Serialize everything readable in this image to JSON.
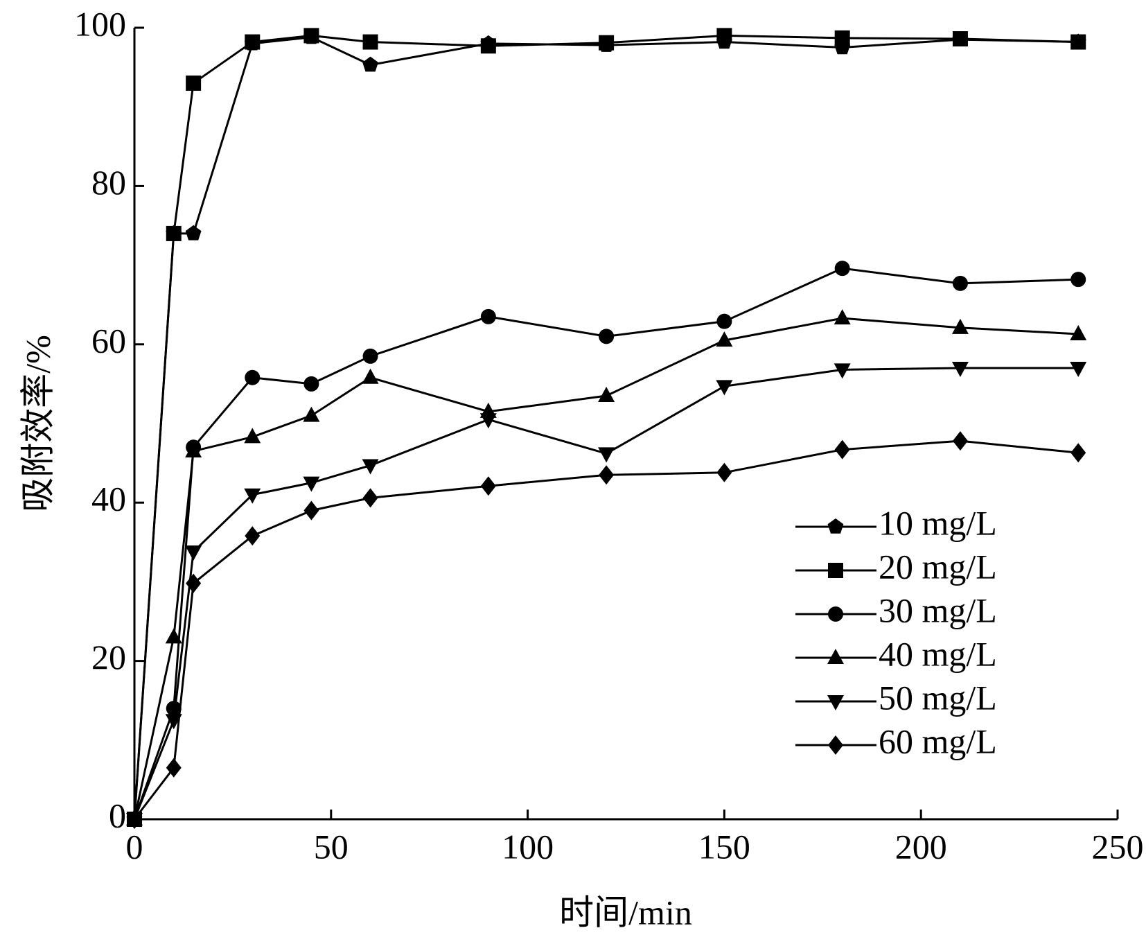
{
  "chart_data": {
    "type": "line",
    "x_label": "时间/min",
    "y_label": "吸附效率/%",
    "x": [
      0,
      10,
      15,
      30,
      45,
      60,
      90,
      120,
      150,
      180,
      210,
      240
    ],
    "xlim": [
      0,
      250
    ],
    "xticks": [
      0,
      50,
      100,
      150,
      200,
      250
    ],
    "ylim": [
      0,
      100
    ],
    "yticks": [
      0,
      20,
      40,
      60,
      80,
      100
    ],
    "legend": "lower-right",
    "series": [
      {
        "name": "10 mg/L",
        "color": "#000000",
        "marker": "pentagon",
        "values": [
          0,
          74,
          74,
          98,
          98.8,
          95.3,
          98,
          97.8,
          98.2,
          97.5,
          98.5,
          98.2
        ]
      },
      {
        "name": "20 mg/L",
        "color": "#000000",
        "marker": "square",
        "values": [
          0,
          74,
          93,
          98.2,
          99,
          98.2,
          97.7,
          98.1,
          99,
          98.7,
          98.6,
          98.2
        ]
      },
      {
        "name": "30 mg/L",
        "color": "#000000",
        "marker": "circle",
        "values": [
          0,
          14,
          47,
          55.8,
          55,
          58.5,
          63.5,
          61,
          62.9,
          69.6,
          67.7,
          68.2
        ]
      },
      {
        "name": "40 mg/L",
        "color": "#000000",
        "marker": "triangle-up",
        "values": [
          0,
          23,
          46.5,
          48.3,
          51,
          55.8,
          51.5,
          53.5,
          60.5,
          63.3,
          62.1,
          61.3
        ]
      },
      {
        "name": "50 mg/L",
        "color": "#000000",
        "marker": "triangle-down",
        "values": [
          0,
          12.5,
          33.8,
          41,
          42.5,
          44.7,
          50.5,
          46.2,
          54.7,
          56.8,
          57,
          57
        ]
      },
      {
        "name": "60 mg/L",
        "color": "#000000",
        "marker": "diamond",
        "values": [
          0,
          6.5,
          29.8,
          35.8,
          39,
          40.6,
          42.1,
          43.5,
          43.8,
          46.7,
          47.8,
          46.3
        ]
      }
    ]
  }
}
